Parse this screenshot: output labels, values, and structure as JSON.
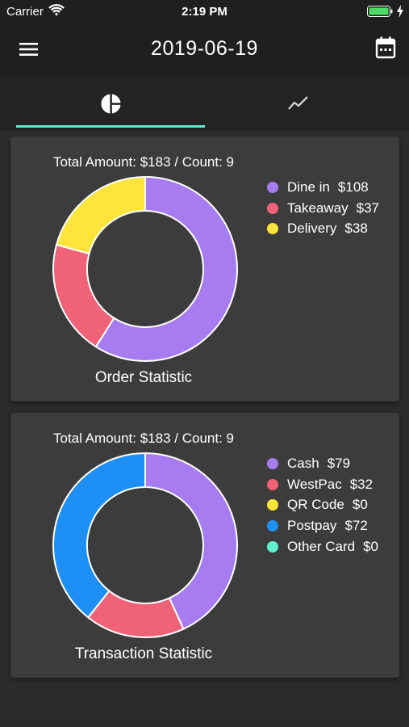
{
  "status_bar": {
    "carrier": "Carrier",
    "time": "2:19 PM"
  },
  "header": {
    "title": "2019-06-19",
    "menu_icon": "menu-icon",
    "calendar_icon": "calendar-icon"
  },
  "tabs": [
    {
      "icon": "pie-chart-icon",
      "active": true
    },
    {
      "icon": "line-chart-icon",
      "active": false
    }
  ],
  "colors": {
    "accent": "#5fe6cc",
    "purple": "#a67cf0",
    "red": "#f06277",
    "yellow": "#ffe53b",
    "blue": "#1e8ff5",
    "teal": "#5ef2cf"
  },
  "order_statistic": {
    "total": "Total Amount: $183 / Count: 9",
    "title": "Order Statistic",
    "legend": [
      {
        "label": "Dine in",
        "value": "$108",
        "color": "#a67cf0"
      },
      {
        "label": "Takeaway",
        "value": "$37",
        "color": "#f06277"
      },
      {
        "label": "Delivery",
        "value": "$38",
        "color": "#ffe53b"
      }
    ]
  },
  "transaction_statistic": {
    "total": "Total Amount: $183 / Count: 9",
    "title": "Transaction Statistic",
    "legend": [
      {
        "label": "Cash",
        "value": "$79",
        "color": "#a67cf0"
      },
      {
        "label": "WestPac",
        "value": "$32",
        "color": "#f06277"
      },
      {
        "label": "QR Code",
        "value": "$0",
        "color": "#ffe53b"
      },
      {
        "label": "Postpay",
        "value": "$72",
        "color": "#1e8ff5"
      },
      {
        "label": "Other Card",
        "value": "$0",
        "color": "#5ef2cf"
      }
    ]
  },
  "chart_data": [
    {
      "type": "pie",
      "title": "Order Statistic",
      "categories": [
        "Dine in",
        "Takeaway",
        "Delivery"
      ],
      "values": [
        108,
        37,
        38
      ],
      "colors": [
        "#a67cf0",
        "#f06277",
        "#ffe53b"
      ],
      "legend": "right"
    },
    {
      "type": "pie",
      "title": "Transaction Statistic",
      "categories": [
        "Cash",
        "WestPac",
        "QR Code",
        "Postpay",
        "Other Card"
      ],
      "values": [
        79,
        32,
        0,
        72,
        0
      ],
      "colors": [
        "#a67cf0",
        "#f06277",
        "#ffe53b",
        "#1e8ff5",
        "#5ef2cf"
      ],
      "legend": "right"
    }
  ]
}
